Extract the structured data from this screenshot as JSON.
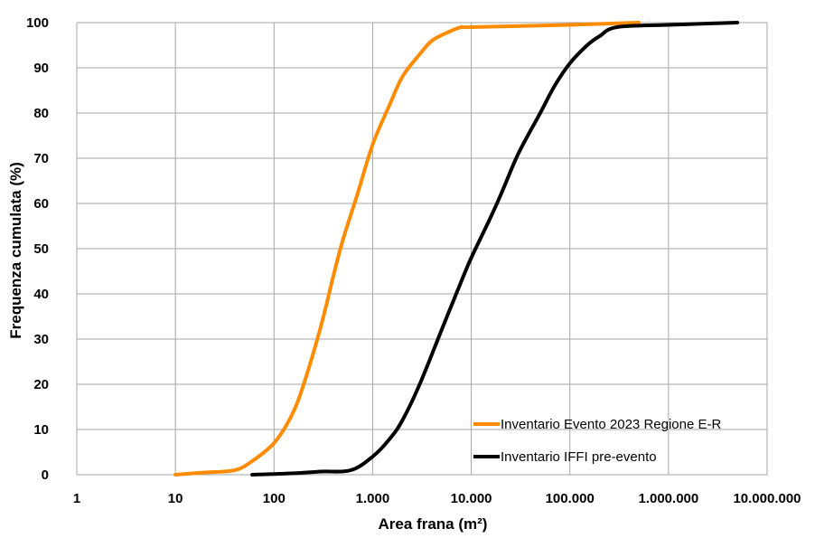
{
  "chart_data": {
    "type": "line",
    "title": "",
    "xlabel": "Area frana (m²)",
    "ylabel": "Frequenza cumulata (%)",
    "xscale": "log",
    "xlim": [
      1,
      10000000
    ],
    "ylim": [
      0,
      100
    ],
    "grid": true,
    "legend_position": "bottom-right",
    "x_ticks": [
      {
        "value": 1,
        "label": "1"
      },
      {
        "value": 10,
        "label": "10"
      },
      {
        "value": 100,
        "label": "100"
      },
      {
        "value": 1000,
        "label": "1.000"
      },
      {
        "value": 10000,
        "label": "10.000"
      },
      {
        "value": 100000,
        "label": "100.000"
      },
      {
        "value": 1000000,
        "label": "1.000.000"
      },
      {
        "value": 10000000,
        "label": "10.000.000"
      }
    ],
    "y_ticks": [
      {
        "value": 0,
        "label": "0"
      },
      {
        "value": 10,
        "label": "10"
      },
      {
        "value": 20,
        "label": "20"
      },
      {
        "value": 30,
        "label": "30"
      },
      {
        "value": 40,
        "label": "40"
      },
      {
        "value": 50,
        "label": "50"
      },
      {
        "value": 60,
        "label": "60"
      },
      {
        "value": 70,
        "label": "70"
      },
      {
        "value": 80,
        "label": "80"
      },
      {
        "value": 90,
        "label": "90"
      },
      {
        "value": 100,
        "label": "100"
      }
    ],
    "series": [
      {
        "name": "Inventario Evento 2023 Regione E-R",
        "color": "#FF8C00",
        "points": [
          [
            10,
            0
          ],
          [
            20,
            0.5
          ],
          [
            40,
            1
          ],
          [
            60,
            3
          ],
          [
            100,
            7
          ],
          [
            150,
            13
          ],
          [
            200,
            20
          ],
          [
            300,
            33
          ],
          [
            400,
            44
          ],
          [
            500,
            52
          ],
          [
            700,
            62
          ],
          [
            1000,
            73
          ],
          [
            1500,
            82
          ],
          [
            2000,
            88
          ],
          [
            3000,
            93
          ],
          [
            4000,
            96
          ],
          [
            6000,
            98
          ],
          [
            8000,
            99
          ],
          [
            10000,
            99
          ],
          [
            100000,
            99.5
          ],
          [
            500000,
            100
          ]
        ]
      },
      {
        "name": "Inventario IFFI pre-evento",
        "color": "#000000",
        "points": [
          [
            60,
            0
          ],
          [
            150,
            0.3
          ],
          [
            300,
            0.7
          ],
          [
            600,
            1
          ],
          [
            1000,
            4
          ],
          [
            1500,
            8
          ],
          [
            2000,
            12
          ],
          [
            3000,
            20
          ],
          [
            5000,
            32
          ],
          [
            8000,
            43
          ],
          [
            10000,
            48
          ],
          [
            15000,
            56
          ],
          [
            20000,
            62
          ],
          [
            30000,
            71
          ],
          [
            50000,
            80
          ],
          [
            70000,
            86
          ],
          [
            100000,
            91
          ],
          [
            150000,
            95
          ],
          [
            200000,
            97
          ],
          [
            300000,
            99
          ],
          [
            1000000,
            99.5
          ],
          [
            5000000,
            100
          ]
        ]
      }
    ]
  }
}
